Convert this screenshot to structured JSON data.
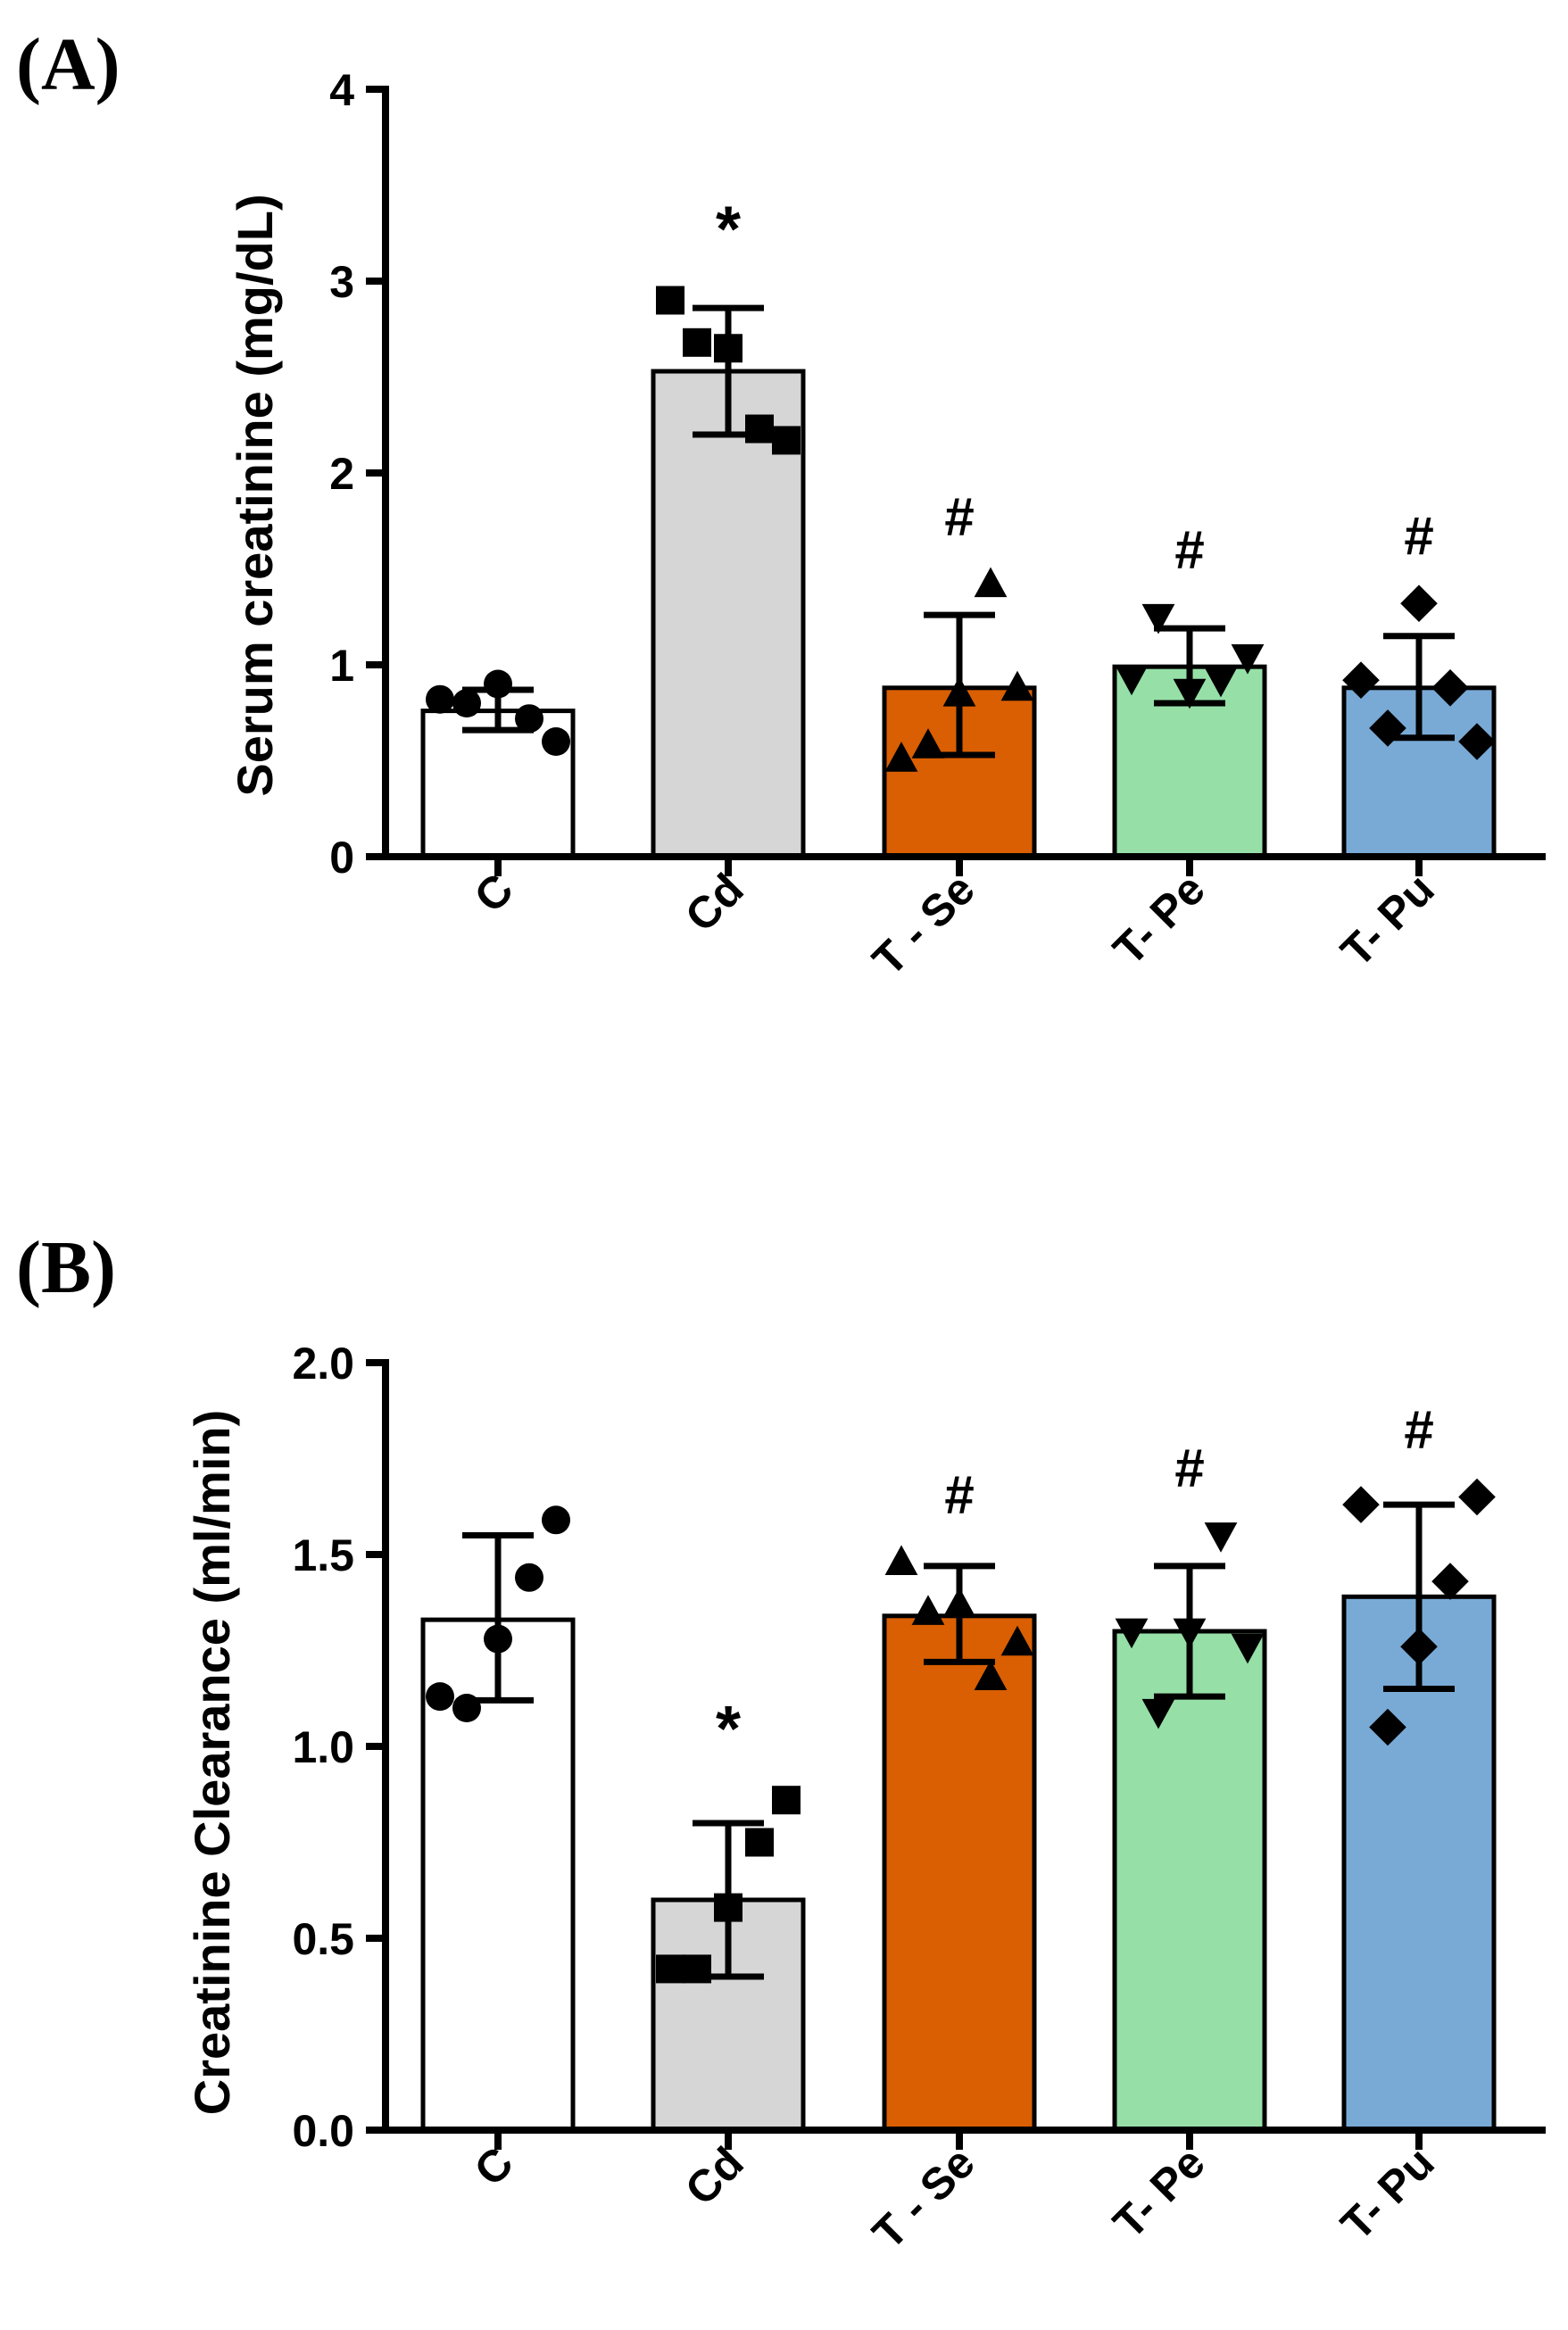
{
  "chart_data": [
    {
      "type": "bar",
      "panel_label": "(A)",
      "ylabel": "Serum creatinine (mg/dL)",
      "ylim": [
        0,
        4
      ],
      "yticks": [
        "0",
        "1",
        "2",
        "3",
        "4"
      ],
      "categories": [
        "C",
        "Cd",
        "T - Se",
        "T- Pe",
        "T- Pu"
      ],
      "values": [
        0.76,
        2.53,
        0.88,
        0.99,
        0.88
      ],
      "error_bars": [
        {
          "low": 0.66,
          "high": 0.87
        },
        {
          "low": 2.2,
          "high": 2.86
        },
        {
          "low": 0.53,
          "high": 1.26
        },
        {
          "low": 0.8,
          "high": 1.19
        },
        {
          "low": 0.62,
          "high": 1.15
        }
      ],
      "points": [
        [
          0.82,
          0.8,
          0.9,
          0.72,
          0.6
        ],
        [
          2.9,
          2.68,
          2.65,
          2.23,
          2.17
        ],
        [
          0.51,
          0.58,
          0.85,
          1.42,
          0.88
        ],
        [
          0.93,
          1.25,
          0.86,
          0.92,
          1.04
        ],
        [
          0.92,
          0.67,
          1.32,
          0.88,
          0.6
        ]
      ],
      "marker_shapes": [
        "circle",
        "square",
        "triangle-up",
        "triangle-down",
        "diamond"
      ],
      "bar_colors": [
        "#ffffff",
        "#d6d6d6",
        "#d95f02",
        "#96e0a8",
        "#79aad6"
      ],
      "significance": [
        "",
        "*",
        "#",
        "#",
        "#"
      ]
    },
    {
      "type": "bar",
      "panel_label": "(B)",
      "ylabel": "Creatinine Clearance (ml/min)",
      "ylim": [
        0,
        2
      ],
      "yticks": [
        "0.0",
        "0.5",
        "1.0",
        "1.5",
        "2.0"
      ],
      "categories": [
        "C",
        "Cd",
        "T - Se",
        "T- Pe",
        "T- Pu"
      ],
      "values": [
        1.33,
        0.6,
        1.34,
        1.3,
        1.39
      ],
      "error_bars": [
        {
          "low": 1.12,
          "high": 1.55
        },
        {
          "low": 0.4,
          "high": 0.8
        },
        {
          "low": 1.22,
          "high": 1.47
        },
        {
          "low": 1.13,
          "high": 1.47
        },
        {
          "low": 1.15,
          "high": 1.63
        }
      ],
      "points": [
        [
          1.13,
          1.1,
          1.28,
          1.44,
          1.59
        ],
        [
          0.42,
          0.42,
          0.58,
          0.75,
          0.86
        ],
        [
          1.48,
          1.35,
          1.37,
          1.18,
          1.27
        ],
        [
          1.3,
          1.09,
          1.3,
          1.55,
          1.26
        ],
        [
          1.63,
          1.05,
          1.26,
          1.43,
          1.65
        ]
      ],
      "marker_shapes": [
        "circle",
        "square",
        "triangle-up",
        "triangle-down",
        "diamond"
      ],
      "bar_colors": [
        "#ffffff",
        "#d6d6d6",
        "#d95f02",
        "#96e0a8",
        "#79aad6"
      ],
      "significance": [
        "",
        "*",
        "#",
        "#",
        "#"
      ]
    }
  ]
}
